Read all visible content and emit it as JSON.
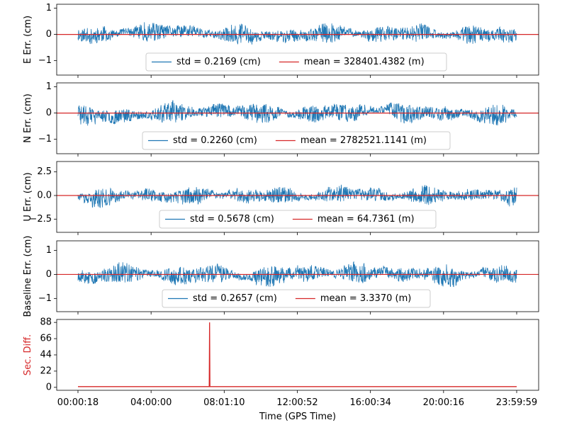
{
  "chart_data": [
    {
      "type": "line",
      "ylabel": "E Err. (cm)",
      "ylim": [
        -1.55,
        1.15
      ],
      "yticks": [
        -1,
        0,
        1
      ],
      "ytick_labels": [
        "−1",
        "0",
        "1"
      ],
      "noise": {
        "scale": 0.2169,
        "max_abs": 1.03,
        "seed": 11
      },
      "legend": {
        "std_label": "std = 0.2169 (cm)",
        "mean_label": "mean = 328401.4382 (m)",
        "position": "lower-center"
      },
      "mean_line": 0
    },
    {
      "type": "line",
      "ylabel": "N Err. (cm)",
      "ylim": [
        -1.55,
        1.15
      ],
      "yticks": [
        -1,
        0,
        1
      ],
      "ytick_labels": [
        "−1",
        "0",
        "1"
      ],
      "noise": {
        "scale": 0.226,
        "max_abs": 1.0,
        "seed": 23
      },
      "legend": {
        "std_label": "std = 0.2260 (cm)",
        "mean_label": "mean = 2782521.1141 (m)",
        "position": "lower-center"
      },
      "mean_line": 0
    },
    {
      "type": "line",
      "ylabel": "U Err. (cm)",
      "ylim": [
        -3.9,
        3.6
      ],
      "yticks": [
        -2.5,
        0,
        2.5
      ],
      "ytick_labels": [
        "−2.5",
        "0.0",
        "2.5"
      ],
      "noise": {
        "scale": 0.5678,
        "max_abs": 3.0,
        "seed": 37
      },
      "legend": {
        "std_label": "std = 0.5678 (cm)",
        "mean_label": "mean = 64.7361 (m)",
        "position": "lower-center"
      },
      "mean_line": 0
    },
    {
      "type": "line",
      "ylabel": "Baseline Err. (cm)",
      "ylim": [
        -1.55,
        1.4
      ],
      "yticks": [
        -1,
        0,
        1
      ],
      "ytick_labels": [
        "−1",
        "0",
        "1"
      ],
      "noise": {
        "scale": 0.2657,
        "max_abs": 1.2,
        "seed": 53
      },
      "legend": {
        "std_label": "std = 0.2657 (cm)",
        "mean_label": "mean = 3.3370 (m)",
        "position": "lower-center"
      },
      "mean_line": 0
    },
    {
      "type": "line",
      "ylabel": "Sec. Diff.",
      "ylim": [
        -4,
        92
      ],
      "yticks": [
        0,
        22,
        44,
        66,
        88
      ],
      "ytick_labels": [
        "0",
        "22",
        "44",
        "66",
        "88"
      ],
      "baseline_value": 1,
      "spike": {
        "x_fraction": 0.3,
        "value": 88
      },
      "xlabel": "Time (GPS Time)",
      "xtick_labels": [
        "00:00:18",
        "04:00:00",
        "08:01:10",
        "12:00:52",
        "16:00:34",
        "20:00:16",
        "23:59:59"
      ]
    }
  ],
  "colors": {
    "series": "#1f77b4",
    "mean": "#d62728",
    "secdiff_label": "#d62728",
    "axis": "#000000",
    "legend_border": "#cccccc"
  }
}
